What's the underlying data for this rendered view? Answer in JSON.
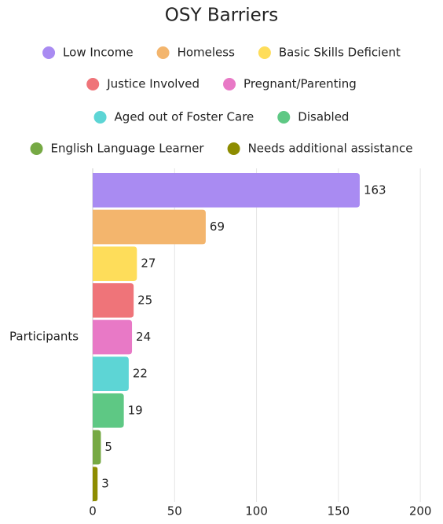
{
  "chart_data": {
    "type": "bar",
    "orientation": "horizontal",
    "title": "OSY Barriers",
    "categories": [
      "Participants"
    ],
    "series": [
      {
        "name": "Low Income",
        "color": "#a98bf2",
        "values": [
          163
        ]
      },
      {
        "name": "Homeless",
        "color": "#f3b56d",
        "values": [
          69
        ]
      },
      {
        "name": "Basic Skills Deficient",
        "color": "#fedd5a",
        "values": [
          27
        ]
      },
      {
        "name": "Justice Involved",
        "color": "#ef7479",
        "values": [
          25
        ]
      },
      {
        "name": "Pregnant/Parenting",
        "color": "#e879c6",
        "values": [
          24
        ]
      },
      {
        "name": "Aged out of Foster Care",
        "color": "#5dd5d5",
        "values": [
          22
        ]
      },
      {
        "name": "Disabled",
        "color": "#5ec884",
        "values": [
          19
        ]
      },
      {
        "name": "English Language Learner",
        "color": "#76a944",
        "values": [
          5
        ]
      },
      {
        "name": "Needs additional assistance",
        "color": "#8d8c00",
        "values": [
          3
        ]
      }
    ],
    "xlim": [
      0,
      210
    ],
    "xticks": [
      0,
      50,
      100,
      150,
      200
    ],
    "grid": true,
    "legend": "top"
  }
}
